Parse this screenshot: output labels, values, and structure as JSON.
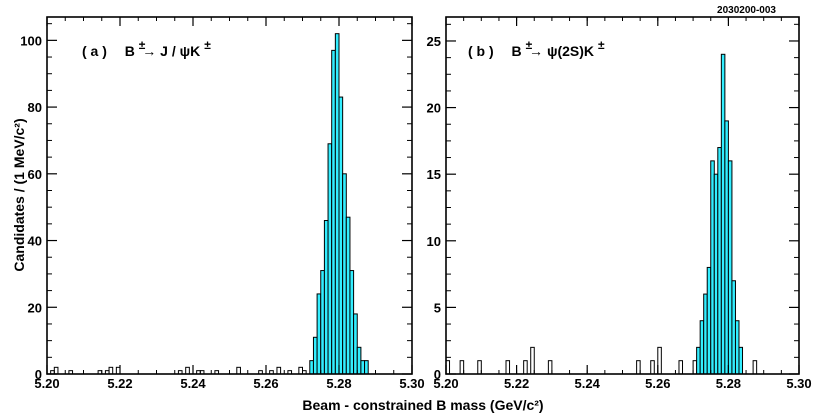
{
  "figure_id": "2030200-003",
  "xlabel": "Beam - constrained  B  mass  (GeV/c²)",
  "ylabel": "Candidates / (1 MeV/c²)",
  "colors": {
    "fill": "#33eeff",
    "line": "#000000"
  },
  "chart_data": [
    {
      "type": "bar",
      "panel": "a",
      "label": "( a )   B±→ J / ψK±",
      "label_parts": {
        "id": "( a )",
        "parent": "B",
        "pm1": "±",
        "arrow": "→",
        "product": " J / ψK",
        "pm2": "±"
      },
      "xlim": [
        5.2,
        5.3
      ],
      "ylim": [
        0,
        107
      ],
      "bin_width": 0.001,
      "xticks": [
        "5.20",
        "5.22",
        "5.24",
        "5.26",
        "5.28",
        "5.30"
      ],
      "xtick_values": [
        5.2,
        5.22,
        5.24,
        5.26,
        5.28,
        5.3
      ],
      "yticks": [
        "0",
        "20",
        "40",
        "60",
        "80",
        "100"
      ],
      "ytick_values": [
        0,
        20,
        40,
        60,
        80,
        100
      ],
      "signal_range": [
        5.272,
        5.287
      ],
      "bins": [
        [
          5.201,
          1
        ],
        [
          5.202,
          2
        ],
        [
          5.206,
          1
        ],
        [
          5.214,
          1
        ],
        [
          5.216,
          1
        ],
        [
          5.217,
          2
        ],
        [
          5.219,
          2
        ],
        [
          5.236,
          1
        ],
        [
          5.238,
          2
        ],
        [
          5.241,
          1
        ],
        [
          5.242,
          1
        ],
        [
          5.246,
          1
        ],
        [
          5.252,
          2
        ],
        [
          5.258,
          1
        ],
        [
          5.261,
          1
        ],
        [
          5.263,
          2
        ],
        [
          5.266,
          1
        ],
        [
          5.269,
          2
        ],
        [
          5.27,
          1
        ],
        [
          5.272,
          4
        ],
        [
          5.273,
          11
        ],
        [
          5.274,
          24
        ],
        [
          5.275,
          31
        ],
        [
          5.276,
          46
        ],
        [
          5.277,
          69
        ],
        [
          5.278,
          97
        ],
        [
          5.279,
          102
        ],
        [
          5.28,
          83
        ],
        [
          5.281,
          60
        ],
        [
          5.282,
          47
        ],
        [
          5.283,
          31
        ],
        [
          5.284,
          18
        ],
        [
          5.285,
          8
        ],
        [
          5.286,
          4
        ],
        [
          5.287,
          4
        ]
      ]
    },
    {
      "type": "bar",
      "panel": "b",
      "label": "( b )   B±→ ψ(2S)K±",
      "label_parts": {
        "id": "( b )",
        "parent": "B",
        "pm1": "±",
        "arrow": "→",
        "product": " ψ(2S)K",
        "pm2": "±"
      },
      "xlim": [
        5.2,
        5.3
      ],
      "ylim": [
        0,
        26.8
      ],
      "bin_width": 0.001,
      "xticks": [
        "5.20",
        "5.22",
        "5.24",
        "5.26",
        "5.28",
        "5.30"
      ],
      "xtick_values": [
        5.2,
        5.22,
        5.24,
        5.26,
        5.28,
        5.3
      ],
      "yticks": [
        "0",
        "5",
        "10",
        "15",
        "20",
        "25"
      ],
      "ytick_values": [
        0,
        5,
        10,
        15,
        20,
        25
      ],
      "signal_range": [
        5.271,
        5.283
      ],
      "bins": [
        [
          5.2,
          1
        ],
        [
          5.204,
          1
        ],
        [
          5.209,
          1
        ],
        [
          5.217,
          1
        ],
        [
          5.222,
          1
        ],
        [
          5.224,
          2
        ],
        [
          5.229,
          1
        ],
        [
          5.254,
          1
        ],
        [
          5.258,
          1
        ],
        [
          5.26,
          2
        ],
        [
          5.266,
          1
        ],
        [
          5.27,
          1
        ],
        [
          5.271,
          2
        ],
        [
          5.272,
          4
        ],
        [
          5.273,
          6
        ],
        [
          5.274,
          8
        ],
        [
          5.275,
          16
        ],
        [
          5.276,
          15
        ],
        [
          5.277,
          17
        ],
        [
          5.278,
          24
        ],
        [
          5.279,
          19
        ],
        [
          5.28,
          16
        ],
        [
          5.281,
          7
        ],
        [
          5.282,
          4
        ],
        [
          5.283,
          2
        ],
        [
          5.287,
          1
        ]
      ]
    }
  ]
}
